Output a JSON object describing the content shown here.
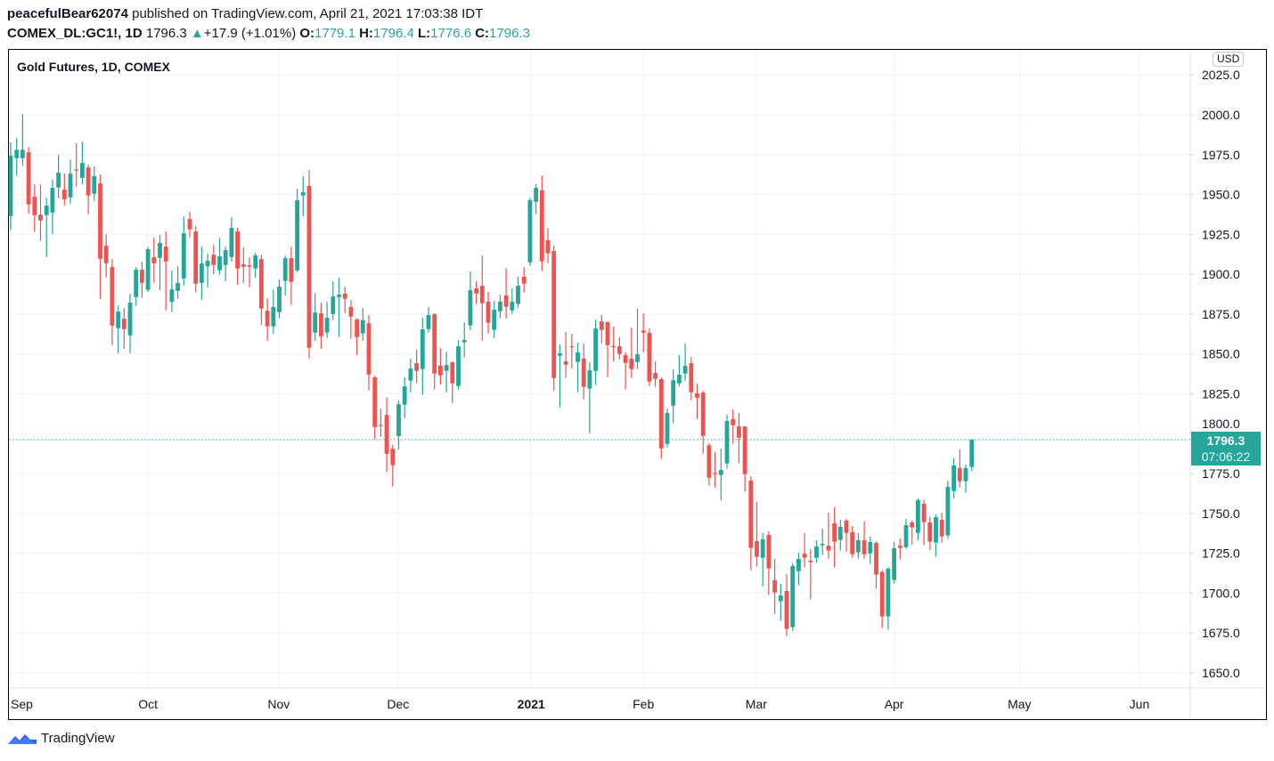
{
  "header": {
    "author": "peacefulBear62074",
    "published": " published on TradingView.com, April 21, 2021 17:03:38 IDT",
    "symbol": "COMEX_DL:GC1!, 1D",
    "last": "1796.3",
    "change": "+17.9 (+1.01%)",
    "o_label": "O:",
    "o": "1779.1",
    "h_label": "H:",
    "h": "1796.4",
    "l_label": "L:",
    "l": "1776.6",
    "c_label": "C:",
    "c": "1796.3"
  },
  "legend": "Gold Futures, 1D, COMEX",
  "currency": "USD",
  "last_price_label": {
    "price": "1796.3",
    "countdown": "07:06:22"
  },
  "footer": {
    "brand": "TradingView"
  },
  "colors": {
    "up": "#26a69a",
    "down": "#ef5350",
    "grid": "#f0f3fa"
  },
  "chart_data": {
    "type": "candlestick",
    "title": "Gold Futures, 1D, COMEX",
    "ylim": [
      1635,
      2030
    ],
    "yticks": [
      "2025.0",
      "2000.0",
      "1975.0",
      "1950.0",
      "1925.0",
      "1900.0",
      "1875.0",
      "1850.0",
      "1825.0",
      "1800.0",
      "1775.0",
      "1750.0",
      "1725.0",
      "1700.0",
      "1675.0",
      "1650.0"
    ],
    "xticks": [
      {
        "label": "Sep",
        "bar": 2,
        "bold": false
      },
      {
        "label": "Oct",
        "bar": 23,
        "bold": false
      },
      {
        "label": "Nov",
        "bar": 44.9,
        "bold": false
      },
      {
        "label": "Dec",
        "bar": 64.9,
        "bold": false
      },
      {
        "label": "2021",
        "bar": 87.2,
        "bold": true
      },
      {
        "label": "Feb",
        "bar": 106,
        "bold": false
      },
      {
        "label": "Mar",
        "bar": 124.9,
        "bold": false
      },
      {
        "label": "Apr",
        "bar": 148,
        "bold": false
      },
      {
        "label": "May",
        "bar": 169,
        "bold": false
      },
      {
        "label": "Jun",
        "bar": 189.1,
        "bold": false
      }
    ],
    "last_price": 1796.3,
    "ohlc_fields": [
      "open",
      "high",
      "low",
      "close"
    ],
    "ohlc": [
      [
        1936.5,
        1982.7,
        1927.6,
        1974.3
      ],
      [
        1972.8,
        1985.5,
        1961.6,
        1978
      ],
      [
        1972.8,
        2000.5,
        1968.3,
        1978
      ],
      [
        1976.5,
        1979.9,
        1938.2,
        1943.8
      ],
      [
        1948.6,
        1956.4,
        1926.5,
        1937.1
      ],
      [
        1937.4,
        1956.4,
        1920.9,
        1933.7
      ],
      [
        1937.1,
        1948,
        1910.8,
        1943
      ],
      [
        1938.7,
        1959.2,
        1925.3,
        1954.2
      ],
      [
        1954.4,
        1974.9,
        1947.7,
        1963.7
      ],
      [
        1953.1,
        1963.1,
        1943.2,
        1947.1
      ],
      [
        1948.2,
        1972,
        1944.3,
        1963.1
      ],
      [
        1965.7,
        1982.1,
        1954.9,
        1965.5
      ],
      [
        1960.5,
        1983.2,
        1956.6,
        1969.8
      ],
      [
        1967,
        1968.7,
        1937.6,
        1949.4
      ],
      [
        1950.5,
        1967.6,
        1946,
        1961.5
      ],
      [
        1957,
        1962.6,
        1884.6,
        1909.7
      ],
      [
        1917.9,
        1925.2,
        1898,
        1906.9
      ],
      [
        1904.5,
        1909.5,
        1855.6,
        1867.8
      ],
      [
        1866.2,
        1880.5,
        1850.5,
        1876.6
      ],
      [
        1872.1,
        1878.8,
        1853.3,
        1865.6
      ],
      [
        1861.7,
        1887.8,
        1850.5,
        1882.2
      ],
      [
        1885.7,
        1904.5,
        1880.1,
        1902.8
      ],
      [
        1902.8,
        1907.9,
        1885.2,
        1894.6
      ],
      [
        1890.2,
        1917.3,
        1889,
        1915.7
      ],
      [
        1910.6,
        1922.9,
        1894.6,
        1906.9
      ],
      [
        1910.3,
        1924.6,
        1890.2,
        1919.6
      ],
      [
        1917.3,
        1926.8,
        1877.3,
        1908
      ],
      [
        1882.7,
        1902.3,
        1876.2,
        1890.5
      ],
      [
        1889.6,
        1905.1,
        1884.6,
        1894.5
      ],
      [
        1897.4,
        1936.3,
        1893,
        1925.7
      ],
      [
        1934.7,
        1939.1,
        1923.1,
        1928.1
      ],
      [
        1926.8,
        1930.2,
        1888.5,
        1894.1
      ],
      [
        1894.6,
        1917.3,
        1884,
        1906.7
      ],
      [
        1905,
        1912.9,
        1891.7,
        1908.4
      ],
      [
        1912.3,
        1918.5,
        1900,
        1905.8
      ],
      [
        1902.5,
        1922.9,
        1899.7,
        1911.2
      ],
      [
        1905.8,
        1917.3,
        1895.6,
        1915.1
      ],
      [
        1910.8,
        1935.8,
        1908,
        1929.1
      ],
      [
        1926.8,
        1929.1,
        1893.5,
        1903.6
      ],
      [
        1906.2,
        1916.8,
        1894.5,
        1904.7
      ],
      [
        1905.6,
        1910.6,
        1891.7,
        1904.7
      ],
      [
        1903.6,
        1913.4,
        1897.8,
        1911.8
      ],
      [
        1909.5,
        1912.3,
        1868.2,
        1878.5
      ],
      [
        1877.1,
        1884.9,
        1858.3,
        1867.3
      ],
      [
        1867.3,
        1890.5,
        1862.8,
        1879.4
      ],
      [
        1876.2,
        1896.7,
        1872.3,
        1892.2
      ],
      [
        1895.8,
        1911.8,
        1886.8,
        1910.1
      ],
      [
        1910.1,
        1917.3,
        1881.2,
        1895.2
      ],
      [
        1902.5,
        1953.6,
        1901.3,
        1946.4
      ],
      [
        1949.4,
        1961.5,
        1936.5,
        1951.4
      ],
      [
        1955.3,
        1965.4,
        1847.2,
        1853.9
      ],
      [
        1863.4,
        1888.3,
        1858.3,
        1876
      ],
      [
        1875.5,
        1882.2,
        1853.3,
        1861.1
      ],
      [
        1863.4,
        1882.7,
        1860,
        1872.7
      ],
      [
        1875.1,
        1895.6,
        1871.2,
        1886.1
      ],
      [
        1885.7,
        1897.8,
        1860.6,
        1887.2
      ],
      [
        1887.8,
        1892.2,
        1875.7,
        1884.6
      ],
      [
        1879.4,
        1883.8,
        1859.5,
        1873.4
      ],
      [
        1871.6,
        1872.3,
        1849.4,
        1860.6
      ],
      [
        1863,
        1878.8,
        1858.3,
        1871.2
      ],
      [
        1869.3,
        1874.4,
        1827.1,
        1837.1
      ],
      [
        1835.3,
        1836.4,
        1796.4,
        1804.2
      ],
      [
        1805.5,
        1815.7,
        1798,
        1805
      ],
      [
        1811.8,
        1822.6,
        1775.7,
        1787.4
      ],
      [
        1790.6,
        1793,
        1766.8,
        1780.2
      ],
      [
        1798.5,
        1820.8,
        1790,
        1818.5
      ],
      [
        1818.2,
        1835.3,
        1809.8,
        1829.7
      ],
      [
        1833.3,
        1847,
        1826,
        1840.9
      ],
      [
        1844.2,
        1852.6,
        1831.6,
        1839.4
      ],
      [
        1840.5,
        1872.7,
        1824.3,
        1865.4
      ],
      [
        1865.6,
        1879.4,
        1863.4,
        1874.4
      ],
      [
        1874.9,
        1875.5,
        1827.7,
        1837.7
      ],
      [
        1842.6,
        1853.7,
        1831,
        1836.6
      ],
      [
        1839.4,
        1851.5,
        1826,
        1843.1
      ],
      [
        1844.8,
        1845.4,
        1819.3,
        1831.6
      ],
      [
        1829.9,
        1858.8,
        1827.7,
        1854.8
      ],
      [
        1857.3,
        1869.9,
        1847.8,
        1858.8
      ],
      [
        1867.9,
        1901.7,
        1864.9,
        1890
      ],
      [
        1891.1,
        1895.6,
        1881.3,
        1888
      ],
      [
        1892.8,
        1911.8,
        1858.4,
        1881.8
      ],
      [
        1882.8,
        1888.9,
        1862.8,
        1869.6
      ],
      [
        1865.1,
        1883.3,
        1860,
        1877.7
      ],
      [
        1876.8,
        1887.2,
        1872.3,
        1882.8
      ],
      [
        1886.7,
        1904,
        1872.3,
        1879.6
      ],
      [
        1877.3,
        1891.1,
        1875.1,
        1882.8
      ],
      [
        1881.3,
        1898.4,
        1879,
        1892.8
      ],
      [
        1898.4,
        1904.5,
        1888.5,
        1894.1
      ],
      [
        1907.5,
        1948.1,
        1905.3,
        1946.4
      ],
      [
        1945.5,
        1956.5,
        1937.7,
        1954.2
      ],
      [
        1952.6,
        1962,
        1901.9,
        1908.1
      ],
      [
        1921.3,
        1929.1,
        1907,
        1913.1
      ],
      [
        1914.6,
        1918,
        1827.1,
        1834.9
      ],
      [
        1848.9,
        1856,
        1816.5,
        1850.4
      ],
      [
        1845.4,
        1863.8,
        1835,
        1843.3
      ],
      [
        1854.8,
        1862.7,
        1841,
        1854.6
      ],
      [
        1845,
        1857.1,
        1826,
        1851
      ],
      [
        1847.1,
        1856.5,
        1821.5,
        1829.4
      ],
      [
        1828.3,
        1844.8,
        1800.3,
        1839.8
      ],
      [
        1839.4,
        1871.6,
        1830.5,
        1866
      ],
      [
        1870.5,
        1874.4,
        1856.7,
        1865.1
      ],
      [
        1869.9,
        1870.5,
        1835.5,
        1855.6
      ],
      [
        1854.9,
        1867.1,
        1845.5,
        1854.7
      ],
      [
        1854.8,
        1860.4,
        1846.7,
        1850
      ],
      [
        1849.3,
        1850.9,
        1827.7,
        1844.4
      ],
      [
        1847,
        1866.6,
        1834.9,
        1840.5
      ],
      [
        1845,
        1878.3,
        1840.5,
        1849.8
      ],
      [
        1864.7,
        1875.5,
        1851.1,
        1863.4
      ],
      [
        1863.2,
        1866,
        1829.9,
        1832.7
      ],
      [
        1838.1,
        1845.4,
        1829.3,
        1834.4
      ],
      [
        1834.2,
        1835.3,
        1784.1,
        1790.8
      ],
      [
        1793.6,
        1815.8,
        1791.4,
        1813
      ],
      [
        1817.6,
        1840.3,
        1806.5,
        1833.6
      ],
      [
        1831.6,
        1849.3,
        1829.9,
        1837
      ],
      [
        1837.7,
        1856.5,
        1833.3,
        1842.6
      ],
      [
        1844.2,
        1848.1,
        1821,
        1826
      ],
      [
        1825.2,
        1831.4,
        1809.2,
        1822.6
      ],
      [
        1825.8,
        1826.9,
        1787.5,
        1798.6
      ],
      [
        1792.7,
        1794,
        1767.4,
        1772.4
      ],
      [
        1775.4,
        1788.4,
        1766.3,
        1775.2
      ],
      [
        1774.1,
        1790.6,
        1758.4,
        1777.2
      ],
      [
        1781.3,
        1811.9,
        1778,
        1808
      ],
      [
        1809.1,
        1815.2,
        1793.6,
        1805.3
      ],
      [
        1804.6,
        1813,
        1781.3,
        1797.5
      ],
      [
        1804.6,
        1804.6,
        1763.5,
        1774.6
      ],
      [
        1770.6,
        1773.3,
        1714.3,
        1728.4
      ],
      [
        1732.6,
        1757.2,
        1716.6,
        1722.8
      ],
      [
        1722.2,
        1737.7,
        1704.3,
        1733.8
      ],
      [
        1736.5,
        1738.8,
        1698.8,
        1715.5
      ],
      [
        1708.1,
        1721.5,
        1687,
        1700.4
      ],
      [
        1694.9,
        1705.8,
        1682.6,
        1698.6
      ],
      [
        1701.4,
        1712,
        1673.1,
        1677.6
      ],
      [
        1678.7,
        1718.7,
        1676.4,
        1717
      ],
      [
        1713.8,
        1725.4,
        1704.9,
        1721.5
      ],
      [
        1724.8,
        1737.7,
        1716.1,
        1722.2
      ],
      [
        1720.4,
        1727.6,
        1696,
        1719.4
      ],
      [
        1722.1,
        1733.2,
        1718.9,
        1729.3
      ],
      [
        1730,
        1740.5,
        1723.9,
        1730.9
      ],
      [
        1729.8,
        1750.5,
        1721.6,
        1726.7
      ],
      [
        1743.8,
        1753.9,
        1716.1,
        1732.3
      ],
      [
        1733.4,
        1746,
        1726.7,
        1741.6
      ],
      [
        1745.5,
        1746.6,
        1726.1,
        1737.8
      ],
      [
        1738.2,
        1742.1,
        1722.2,
        1724.4
      ],
      [
        1725.6,
        1737.7,
        1721.6,
        1733.2
      ],
      [
        1733.2,
        1744.9,
        1721.6,
        1724.4
      ],
      [
        1725,
        1735.4,
        1718.3,
        1732.1
      ],
      [
        1731.5,
        1732.6,
        1702.7,
        1711.6
      ],
      [
        1713.3,
        1714.4,
        1678.1,
        1685.4
      ],
      [
        1685.4,
        1716.4,
        1677,
        1715.3
      ],
      [
        1708.3,
        1732.1,
        1706,
        1728.2
      ],
      [
        1729.8,
        1734.3,
        1721.1,
        1728.4
      ],
      [
        1728.9,
        1746.6,
        1727.8,
        1742.7
      ],
      [
        1744.4,
        1745.5,
        1730.4,
        1741.2
      ],
      [
        1737.8,
        1759.4,
        1733.2,
        1758.3
      ],
      [
        1756.1,
        1758.3,
        1730,
        1744.5
      ],
      [
        1744.4,
        1748,
        1727,
        1732.3
      ],
      [
        1731.7,
        1749.4,
        1722.8,
        1747.7
      ],
      [
        1746,
        1750.5,
        1731.7,
        1735.6
      ],
      [
        1736.2,
        1770.6,
        1734,
        1766.7
      ],
      [
        1764.1,
        1784.6,
        1759.6,
        1780.1
      ],
      [
        1778.4,
        1790.1,
        1766.3,
        1770.2
      ],
      [
        1770.2,
        1780.6,
        1763,
        1778.4
      ],
      [
        1779.1,
        1796.4,
        1776.6,
        1796.3
      ]
    ]
  }
}
